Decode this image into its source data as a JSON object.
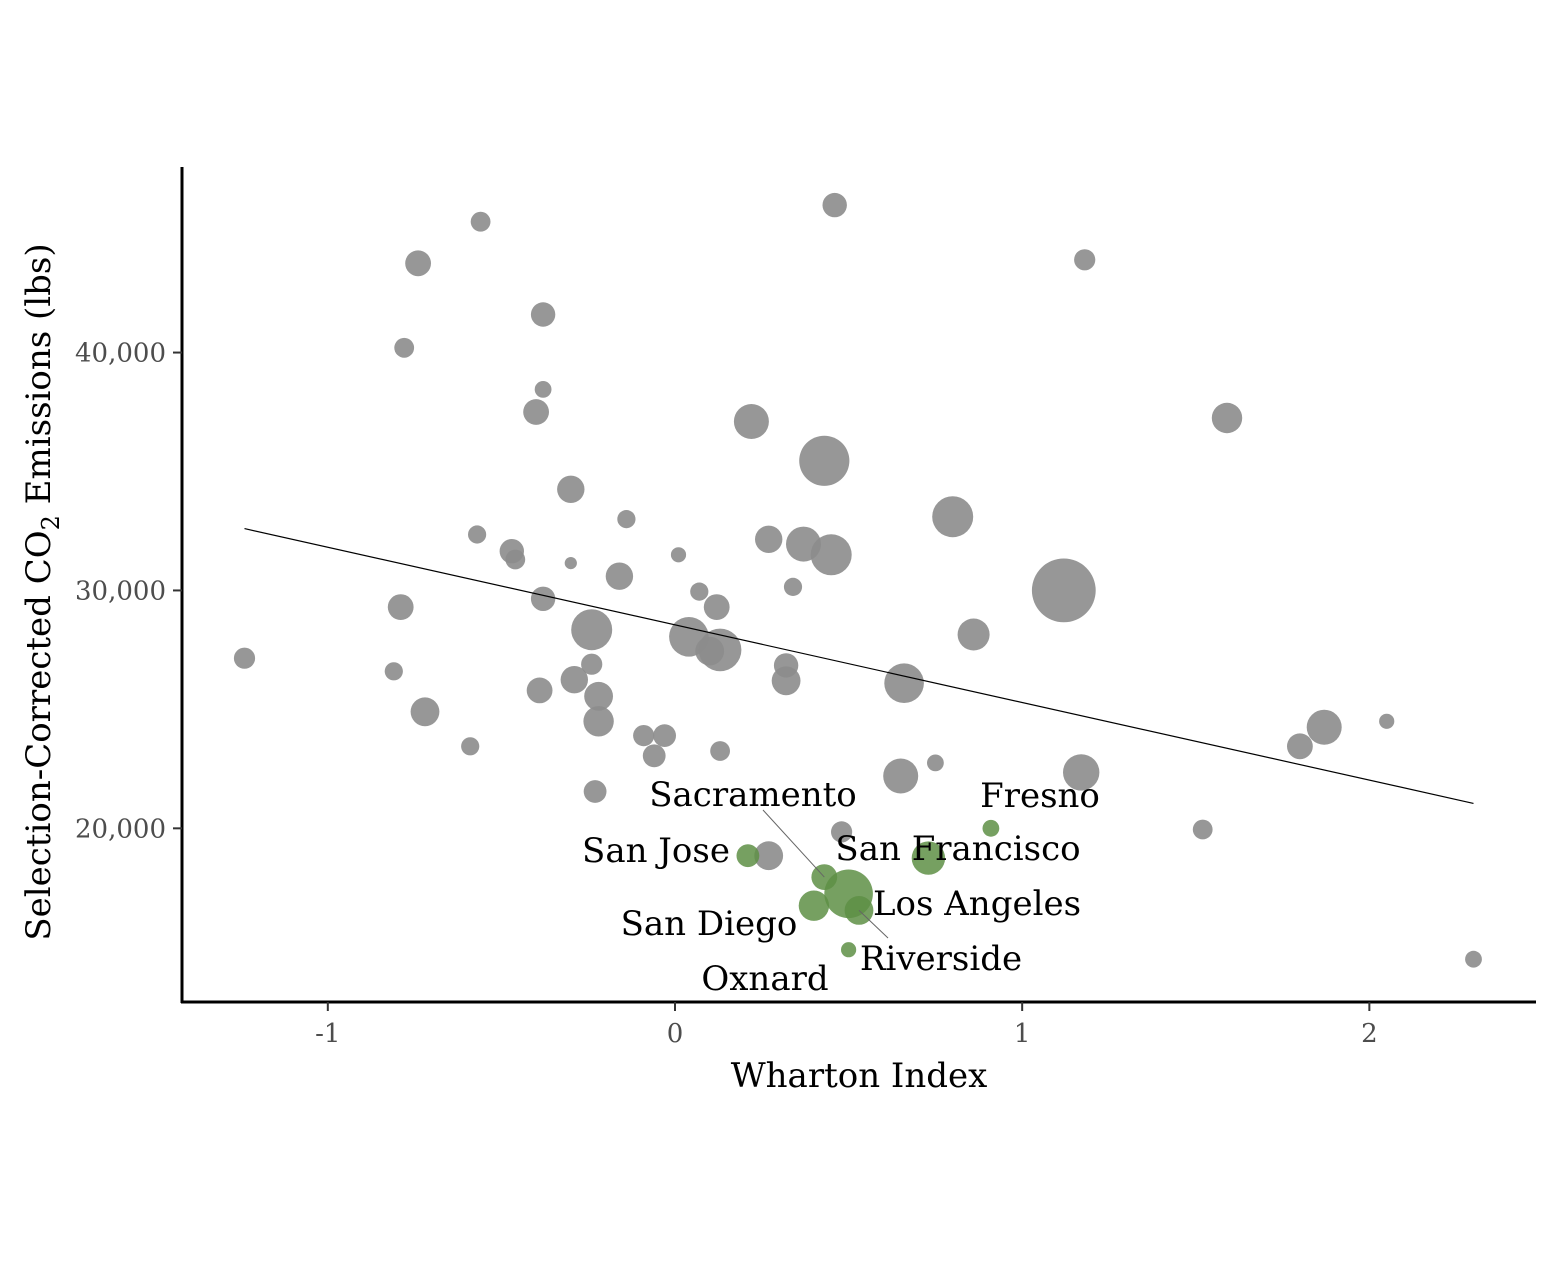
{
  "chart_data": {
    "type": "scatter",
    "xlabel": "Wharton Index",
    "ylabel": "Selection-Corrected CO",
    "ylabel_subscript": "2",
    "ylabel_suffix": " Emissions (lbs)",
    "xlim": [
      -1.42,
      2.48
    ],
    "ylim": [
      12700,
      47800
    ],
    "xticks": [
      -1,
      0,
      1,
      2
    ],
    "xtick_labels": [
      "-1",
      "0",
      "1",
      "2"
    ],
    "yticks": [
      20000,
      30000,
      40000
    ],
    "ytick_labels": [
      "20,000",
      "30,000",
      "40,000"
    ],
    "grid": false,
    "colors": {
      "other": "#8c8c8c",
      "california": "#5e8f45",
      "fit_line": "#000000"
    },
    "fit_line": {
      "x": [
        -1.24,
        2.3
      ],
      "y": [
        32600,
        21050
      ]
    },
    "points": [
      {
        "x": -1.24,
        "y": 27150,
        "size": 1.4
      },
      {
        "x": -0.81,
        "y": 26600,
        "size": 1.2
      },
      {
        "x": -0.79,
        "y": 29300,
        "size": 1.7
      },
      {
        "x": -0.78,
        "y": 40200,
        "size": 1.3
      },
      {
        "x": -0.74,
        "y": 43750,
        "size": 1.7
      },
      {
        "x": -0.72,
        "y": 24900,
        "size": 1.9
      },
      {
        "x": -0.59,
        "y": 23450,
        "size": 1.2
      },
      {
        "x": -0.56,
        "y": 45500,
        "size": 1.3
      },
      {
        "x": -0.57,
        "y": 32350,
        "size": 1.2
      },
      {
        "x": -0.47,
        "y": 31650,
        "size": 1.6
      },
      {
        "x": -0.46,
        "y": 31300,
        "size": 1.3
      },
      {
        "x": -0.4,
        "y": 37500,
        "size": 1.7
      },
      {
        "x": -0.39,
        "y": 25800,
        "size": 1.7
      },
      {
        "x": -0.38,
        "y": 41600,
        "size": 1.6
      },
      {
        "x": -0.38,
        "y": 38450,
        "size": 1.1
      },
      {
        "x": -0.38,
        "y": 29650,
        "size": 1.6
      },
      {
        "x": -0.3,
        "y": 34250,
        "size": 1.8
      },
      {
        "x": -0.3,
        "y": 31150,
        "size": 0.8
      },
      {
        "x": -0.29,
        "y": 26250,
        "size": 1.8
      },
      {
        "x": -0.24,
        "y": 28350,
        "size": 2.7
      },
      {
        "x": -0.24,
        "y": 26900,
        "size": 1.4
      },
      {
        "x": -0.23,
        "y": 21550,
        "size": 1.5
      },
      {
        "x": -0.22,
        "y": 25550,
        "size": 1.9
      },
      {
        "x": -0.22,
        "y": 24500,
        "size": 2.0
      },
      {
        "x": -0.16,
        "y": 30600,
        "size": 1.8
      },
      {
        "x": -0.14,
        "y": 33000,
        "size": 1.2
      },
      {
        "x": -0.09,
        "y": 23900,
        "size": 1.4
      },
      {
        "x": -0.06,
        "y": 23050,
        "size": 1.5
      },
      {
        "x": -0.03,
        "y": 23900,
        "size": 1.5
      },
      {
        "x": 0.01,
        "y": 31500,
        "size": 1.0
      },
      {
        "x": 0.04,
        "y": 28050,
        "size": 2.6
      },
      {
        "x": 0.07,
        "y": 29950,
        "size": 1.2
      },
      {
        "x": 0.1,
        "y": 27450,
        "size": 1.9
      },
      {
        "x": 0.12,
        "y": 29300,
        "size": 1.7
      },
      {
        "x": 0.13,
        "y": 27500,
        "size": 2.8
      },
      {
        "x": 0.13,
        "y": 23250,
        "size": 1.3
      },
      {
        "x": 0.22,
        "y": 37100,
        "size": 2.3
      },
      {
        "x": 0.27,
        "y": 32150,
        "size": 1.8
      },
      {
        "x": 0.27,
        "y": 18850,
        "size": 1.9
      },
      {
        "x": 0.32,
        "y": 26850,
        "size": 1.6
      },
      {
        "x": 0.32,
        "y": 26200,
        "size": 1.9
      },
      {
        "x": 0.34,
        "y": 30150,
        "size": 1.2
      },
      {
        "x": 0.37,
        "y": 31950,
        "size": 2.3
      },
      {
        "x": 0.43,
        "y": 35450,
        "size": 3.3
      },
      {
        "x": 0.45,
        "y": 31500,
        "size": 2.7
      },
      {
        "x": 0.46,
        "y": 46200,
        "size": 1.6
      },
      {
        "x": 0.48,
        "y": 19850,
        "size": 1.4
      },
      {
        "x": 0.65,
        "y": 22200,
        "size": 2.3
      },
      {
        "x": 0.66,
        "y": 26100,
        "size": 2.6
      },
      {
        "x": 0.75,
        "y": 22750,
        "size": 1.1
      },
      {
        "x": 0.8,
        "y": 33100,
        "size": 2.7
      },
      {
        "x": 0.86,
        "y": 28150,
        "size": 2.1
      },
      {
        "x": 1.12,
        "y": 30000,
        "size": 4.2
      },
      {
        "x": 1.17,
        "y": 22350,
        "size": 2.4
      },
      {
        "x": 1.18,
        "y": 43900,
        "size": 1.4
      },
      {
        "x": 1.52,
        "y": 19950,
        "size": 1.3
      },
      {
        "x": 1.59,
        "y": 37250,
        "size": 2.0
      },
      {
        "x": 1.8,
        "y": 23450,
        "size": 1.7
      },
      {
        "x": 1.87,
        "y": 24250,
        "size": 2.3
      },
      {
        "x": 2.05,
        "y": 24500,
        "size": 1.0
      },
      {
        "x": 2.3,
        "y": 14500,
        "size": 1.1
      }
    ],
    "cities": [
      {
        "name": "Fresno",
        "x": 0.91,
        "y": 20000,
        "size": 1.1
      },
      {
        "name": "San Francisco",
        "x": 0.73,
        "y": 18750,
        "size": 2.2
      },
      {
        "name": "San Jose",
        "x": 0.21,
        "y": 18850,
        "size": 1.5
      },
      {
        "name": "Sacramento",
        "x": 0.43,
        "y": 17950,
        "size": 1.7
      },
      {
        "name": "Los Angeles",
        "x": 0.5,
        "y": 17250,
        "size": 3.2
      },
      {
        "name": "San Diego",
        "x": 0.4,
        "y": 16750,
        "size": 2.0
      },
      {
        "name": "Riverside",
        "x": 0.53,
        "y": 16550,
        "size": 1.9
      },
      {
        "name": "Oxnard",
        "x": 0.5,
        "y": 14900,
        "size": 1.0
      }
    ]
  }
}
